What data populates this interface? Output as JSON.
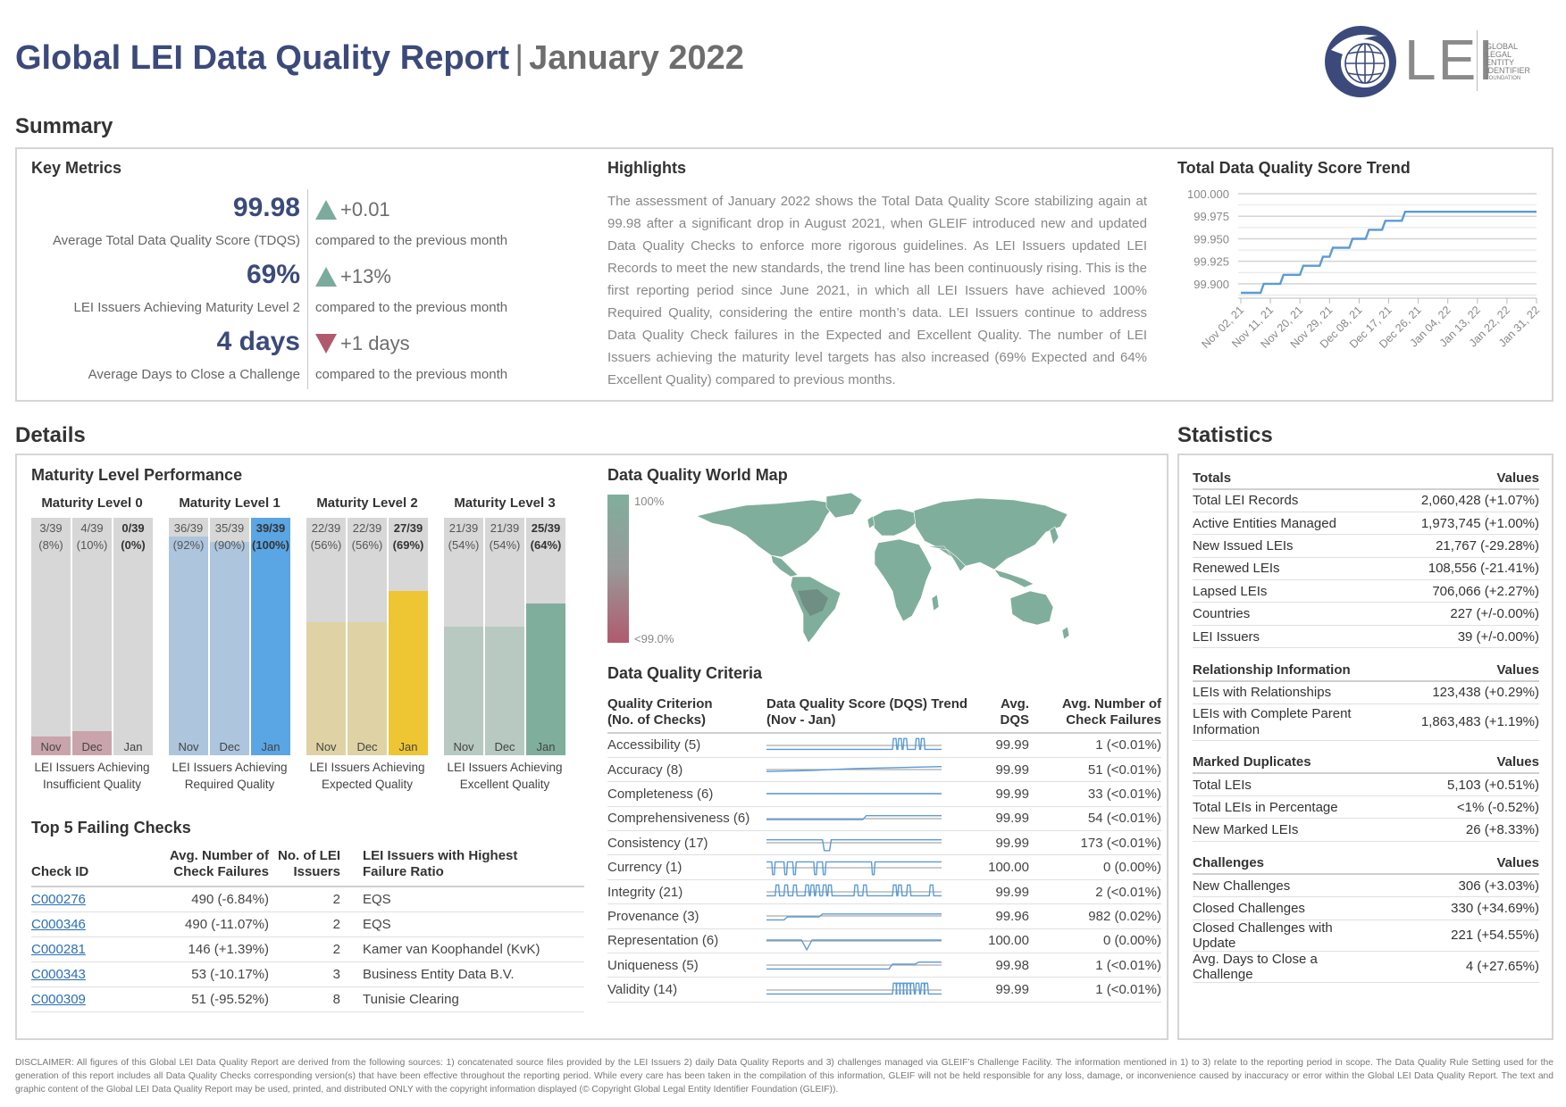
{
  "header": {
    "title": "Global LEI Data Quality Report",
    "separator": "|",
    "subtitle": "January 2022"
  },
  "logo": {
    "mark": "LEI",
    "lines": [
      "GLOBAL",
      "LEGAL",
      "ENTITY",
      "IDENTIFIER",
      "FOUNDATION"
    ]
  },
  "sections": {
    "summary": "Summary",
    "details": "Details",
    "statistics": "Statistics"
  },
  "key_metrics": {
    "title": "Key Metrics",
    "items": [
      {
        "value": "99.98",
        "label": "Average Total Data Quality Score (TDQS)",
        "delta": "+0.01",
        "direction": "up",
        "compare": "compared to the previous month"
      },
      {
        "value": "69%",
        "label": "LEI Issuers Achieving Maturity Level 2",
        "delta": "+13%",
        "direction": "up",
        "compare": "compared to the previous month"
      },
      {
        "value": "4 days",
        "label": "Average Days to Close a Challenge",
        "delta": "+1 days",
        "direction": "down",
        "compare": "compared to the previous month"
      }
    ]
  },
  "highlights": {
    "title": "Highlights",
    "text": "The assessment of January 2022 shows the Total Data Quality Score stabilizing again at 99.98 after a significant drop in August 2021, when GLEIF introduced new and updated Data Quality Checks to enforce more rigorous guidelines. As LEI Issuers updated LEI Records to meet the new standards, the trend line has been continuously rising. This is the first reporting period since June 2021, in which all LEI Issuers have achieved 100% Required Quality, considering the entire month’s data. LEI Issuers continue to address Data Quality Check failures in the Expected and Excellent Quality. The number of LEI Issuers achieving the maturity level targets has also increased (69% Expected and 64% Excellent Quality) compared to previous months."
  },
  "chart_data": {
    "type": "line",
    "title": "Total Data Quality Score Trend",
    "x_ticks": [
      "Nov 02, 21",
      "Nov 11, 21",
      "Nov 20, 21",
      "Nov 29, 21",
      "Dec 08, 21",
      "Dec 17, 21",
      "Dec 26, 21",
      "Jan 04, 22",
      "Jan 13, 22",
      "Jan 22, 22",
      "Jan 31, 22"
    ],
    "y_ticks": [
      "100.000",
      "99.975",
      "99.950",
      "99.925",
      "99.900"
    ],
    "ylim": [
      99.89,
      100.0
    ],
    "grid": true,
    "color": "#5b9bd5",
    "series": [
      {
        "values": [
          99.89,
          99.89,
          99.89,
          99.89,
          99.89,
          99.89,
          99.89,
          99.9,
          99.9,
          99.9,
          99.9,
          99.9,
          99.9,
          99.91,
          99.91,
          99.91,
          99.91,
          99.91,
          99.91,
          99.92,
          99.92,
          99.92,
          99.92,
          99.92,
          99.92,
          99.93,
          99.93,
          99.93,
          99.94,
          99.94,
          99.94,
          99.94,
          99.94,
          99.94,
          99.95,
          99.95,
          99.95,
          99.95,
          99.95,
          99.96,
          99.96,
          99.96,
          99.96,
          99.96,
          99.97,
          99.97,
          99.97,
          99.97,
          99.97,
          99.97,
          99.98,
          99.98,
          99.98,
          99.98,
          99.98,
          99.98,
          99.98,
          99.98,
          99.98,
          99.98,
          99.98,
          99.98,
          99.98,
          99.98,
          99.98,
          99.98,
          99.98,
          99.98,
          99.98,
          99.98,
          99.98,
          99.98,
          99.98,
          99.98,
          99.98,
          99.98,
          99.98,
          99.98,
          99.98,
          99.98,
          99.98,
          99.98,
          99.98,
          99.98,
          99.98,
          99.98,
          99.98,
          99.98,
          99.98,
          99.98,
          99.98
        ]
      }
    ]
  },
  "maturity": {
    "title": "Maturity Level Performance",
    "levels": [
      {
        "name": "Maturity Level 0",
        "caption": [
          "LEI Issuers Achieving",
          "Insufficient Quality"
        ],
        "light": "#c9a4ab",
        "dark": "#c9a4ab",
        "bars": [
          {
            "month": "Nov",
            "frac": "3/39",
            "pct": "(8%)",
            "value": 0.08,
            "bold": false
          },
          {
            "month": "Dec",
            "frac": "4/39",
            "pct": "(10%)",
            "value": 0.1,
            "bold": false
          },
          {
            "month": "Jan",
            "frac": "0/39",
            "pct": "(0%)",
            "value": 0.0,
            "bold": true
          }
        ]
      },
      {
        "name": "Maturity Level 1",
        "caption": [
          "LEI Issuers Achieving",
          "Required Quality"
        ],
        "light": "#adc5dd",
        "dark": "#5aa5e3",
        "bars": [
          {
            "month": "Nov",
            "frac": "36/39",
            "pct": "(92%)",
            "value": 0.92,
            "bold": false
          },
          {
            "month": "Dec",
            "frac": "35/39",
            "pct": "(90%)",
            "value": 0.9,
            "bold": false
          },
          {
            "month": "Jan",
            "frac": "39/39",
            "pct": "(100%)",
            "value": 1.0,
            "bold": true
          }
        ]
      },
      {
        "name": "Maturity Level 2",
        "caption": [
          "LEI Issuers Achieving",
          "Expected Quality"
        ],
        "light": "#dfd3a5",
        "dark": "#eec532",
        "bars": [
          {
            "month": "Nov",
            "frac": "22/39",
            "pct": "(56%)",
            "value": 0.56,
            "bold": false
          },
          {
            "month": "Dec",
            "frac": "22/39",
            "pct": "(56%)",
            "value": 0.56,
            "bold": false
          },
          {
            "month": "Jan",
            "frac": "27/39",
            "pct": "(69%)",
            "value": 0.69,
            "bold": true
          }
        ]
      },
      {
        "name": "Maturity Level 3",
        "caption": [
          "LEI Issuers Achieving",
          "Excellent Quality"
        ],
        "light": "#b7c9c1",
        "dark": "#80ae9d",
        "bars": [
          {
            "month": "Nov",
            "frac": "21/39",
            "pct": "(54%)",
            "value": 0.54,
            "bold": false
          },
          {
            "month": "Dec",
            "frac": "21/39",
            "pct": "(54%)",
            "value": 0.54,
            "bold": false
          },
          {
            "month": "Jan",
            "frac": "25/39",
            "pct": "(64%)",
            "value": 0.64,
            "bold": true
          }
        ]
      }
    ]
  },
  "top5": {
    "title": "Top 5 Failing Checks",
    "headers": {
      "id": "Check ID",
      "avg1": "Avg. Number of",
      "avg2": "Check Failures",
      "no1": "No. of LEI",
      "no2": "Issuers",
      "hi1": "LEI Issuers with Highest",
      "hi2": "Failure Ratio"
    },
    "rows": [
      {
        "id": "C000276",
        "avg": "490 (-6.84%)",
        "n": "2",
        "issuer": "EQS"
      },
      {
        "id": "C000346",
        "avg": "490 (-11.07%)",
        "n": "2",
        "issuer": "EQS"
      },
      {
        "id": "C000281",
        "avg": "146 (+1.39%)",
        "n": "2",
        "issuer": "Kamer van Koophandel (KvK)"
      },
      {
        "id": "C000343",
        "avg": "53 (-10.17%)",
        "n": "3",
        "issuer": "Business Entity Data B.V."
      },
      {
        "id": "C000309",
        "avg": "51 (-95.52%)",
        "n": "8",
        "issuer": "Tunisie Clearing"
      }
    ]
  },
  "world_map": {
    "title": "Data Quality World Map",
    "legend_high": "100%",
    "legend_low": "<99.0%",
    "color_high": "#80ae9d",
    "color_low": "#b05a6e"
  },
  "dq_criteria": {
    "title": "Data Quality Criteria",
    "headers": {
      "c1": "Quality Criterion",
      "c2": "(No. of Checks)",
      "t1": "Data Quality Score (DQS) Trend",
      "t2": "(Nov - Jan)",
      "a1": "Avg.",
      "a2": "DQS",
      "f1": "Avg. Number of",
      "f2": "Check Failures"
    },
    "rows": [
      {
        "name": "Accessibility (5)",
        "dqs": "99.99",
        "fail": "1 (<0.01%)",
        "trend": "spikes-right"
      },
      {
        "name": "Accuracy (8)",
        "dqs": "99.99",
        "fail": "51 (<0.01%)",
        "trend": "rising"
      },
      {
        "name": "Completeness (6)",
        "dqs": "99.99",
        "fail": "33 (<0.01%)",
        "trend": "flat"
      },
      {
        "name": "Comprehensiveness (6)",
        "dqs": "99.99",
        "fail": "54 (<0.01%)",
        "trend": "step-up"
      },
      {
        "name": "Consistency (17)",
        "dqs": "99.99",
        "fail": "173 (<0.01%)",
        "trend": "dip"
      },
      {
        "name": "Currency (1)",
        "dqs": "100.00",
        "fail": "0 (0.00%)",
        "trend": "dips-left"
      },
      {
        "name": "Integrity (21)",
        "dqs": "99.99",
        "fail": "2 (<0.01%)",
        "trend": "spikes-many"
      },
      {
        "name": "Provenance (3)",
        "dqs": "99.96",
        "fail": "982 (0.02%)",
        "trend": "step-up-2"
      },
      {
        "name": "Representation (6)",
        "dqs": "100.00",
        "fail": "0 (0.00%)",
        "trend": "dip-step"
      },
      {
        "name": "Uniqueness (5)",
        "dqs": "99.98",
        "fail": "1 (<0.01%)",
        "trend": "step-late"
      },
      {
        "name": "Validity (14)",
        "dqs": "99.99",
        "fail": "1 (<0.01%)",
        "trend": "spikes-late"
      }
    ]
  },
  "statistics": {
    "groups": [
      {
        "title": "Totals",
        "values_label": "Values",
        "rows": [
          {
            "k": "Total LEI Records",
            "v": "2,060,428 (+1.07%)"
          },
          {
            "k": "Active Entities Managed",
            "v": "1,973,745 (+1.00%)"
          },
          {
            "k": "New Issued LEIs",
            "v": "21,767 (-29.28%)"
          },
          {
            "k": "Renewed LEIs",
            "v": "108,556 (-21.41%)"
          },
          {
            "k": "Lapsed LEIs",
            "v": "706,066 (+2.27%)"
          },
          {
            "k": "Countries",
            "v": "227 (+/-0.00%)"
          },
          {
            "k": "LEI Issuers",
            "v": "39 (+/-0.00%)"
          }
        ]
      },
      {
        "title": "Relationship Information",
        "values_label": "Values",
        "rows": [
          {
            "k": "LEIs with Relationships",
            "v": "123,438 (+0.29%)"
          },
          {
            "k": "LEIs with Complete Parent Information",
            "v": "1,863,483 (+1.19%)"
          }
        ]
      },
      {
        "title": "Marked Duplicates",
        "values_label": "Values",
        "rows": [
          {
            "k": "Total LEIs",
            "v": "5,103 (+0.51%)"
          },
          {
            "k": "Total LEIs in Percentage",
            "v": "<1% (-0.52%)"
          },
          {
            "k": "New Marked LEIs",
            "v": "26 (+8.33%)"
          }
        ]
      },
      {
        "title": "Challenges",
        "values_label": "Values",
        "rows": [
          {
            "k": "New Challenges",
            "v": "306 (+3.03%)"
          },
          {
            "k": "Closed Challenges",
            "v": "330 (+34.69%)"
          },
          {
            "k": "Closed Challenges with Update",
            "v": "221 (+54.55%)"
          },
          {
            "k": "Avg. Days to Close a Challenge",
            "v": "4 (+27.65%)"
          }
        ]
      }
    ]
  },
  "disclaimer": "DISCLAIMER: All figures of this Global LEI Data Quality Report are derived from the following sources: 1) concatenated source files provided by the LEI Issuers 2) daily Data Quality Reports and 3) challenges managed via GLEIF’s Challenge Facility. The information mentioned in 1) to 3) relate to the reporting period in scope. The Data Quality Rule Setting used for the generation of this report includes all Data Quality Checks corresponding version(s) that have been effective throughout the reporting period. While every care has been taken in the compilation of this information, GLEIF will not be held responsible for any loss, damage, or inconvenience caused by inaccuracy or error within the Global LEI Data Quality Report. The text and graphic content of the Global LEI Data Quality Report may be used, printed, and distributed ONLY with the copyright information displayed (© Copyright Global Legal Entity Identifier Foundation (GLEIF))."
}
